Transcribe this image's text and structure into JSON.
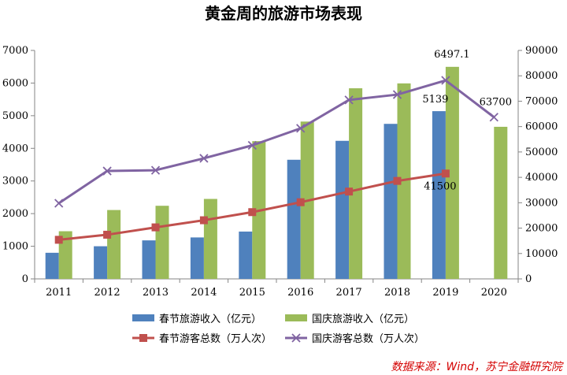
{
  "chart_data": {
    "type": "bar+line",
    "title": "黄金周的旅游市场表现",
    "categories": [
      "2011",
      "2012",
      "2013",
      "2014",
      "2015",
      "2016",
      "2017",
      "2018",
      "2019",
      "2020"
    ],
    "left_axis": {
      "min": 0,
      "max": 7000,
      "step": 1000,
      "ticks": [
        "0",
        "1000",
        "2000",
        "3000",
        "4000",
        "5000",
        "6000",
        "7000"
      ]
    },
    "right_axis": {
      "min": 0,
      "max": 90000,
      "step": 10000,
      "ticks": [
        "0",
        "10000",
        "20000",
        "30000",
        "40000",
        "50000",
        "60000",
        "70000",
        "80000",
        "90000"
      ]
    },
    "bar_series": [
      {
        "name": "春节旅游收入（亿元）",
        "color": "#4f81bd",
        "values": [
          800,
          1000,
          1180,
          1270,
          1450,
          3650,
          4230,
          4750,
          5139,
          null
        ]
      },
      {
        "name": "国庆旅游收入（亿元）",
        "color": "#9bbb59",
        "values": [
          1460,
          2110,
          2240,
          2450,
          4220,
          4820,
          5840,
          5990,
          6497.1,
          4660
        ]
      }
    ],
    "line_series": [
      {
        "name": "春节游客总数（万人次）",
        "color": "#c0504d",
        "marker": "square",
        "values": [
          15400,
          17400,
          20300,
          23100,
          26300,
          30200,
          34400,
          38600,
          41500,
          null
        ]
      },
      {
        "name": "国庆游客总数（万人次）",
        "color": "#8064a2",
        "marker": "x",
        "values": [
          29800,
          42500,
          42800,
          47500,
          52600,
          59300,
          70500,
          72600,
          78200,
          63700
        ]
      }
    ],
    "data_labels": [
      {
        "text": "6497.1",
        "series": "国庆旅游收入（亿元）",
        "index": 8
      },
      {
        "text": "5139",
        "series": "春节旅游收入（亿元）",
        "index": 8
      },
      {
        "text": "41500",
        "series": "春节游客总数（万人次）",
        "index": 8
      },
      {
        "text": "63700",
        "series": "国庆游客总数（万人次）",
        "index": 9
      }
    ],
    "legend_position": "bottom",
    "grid": false
  },
  "source_text": "数据来源：Wind，苏宁金融研究院"
}
